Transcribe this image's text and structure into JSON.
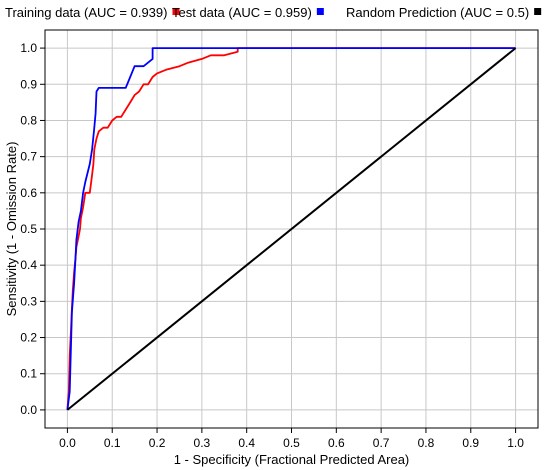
{
  "chart_data": {
    "type": "line",
    "title": "",
    "xlabel": "1 - Specificity  (Fractional Predicted Area)",
    "ylabel": "Sensitivity  (1 - Omission Rate)",
    "xlim": [
      -0.05,
      1.05
    ],
    "ylim": [
      -0.05,
      1.05
    ],
    "xticks": [
      "0.0",
      "0.1",
      "0.2",
      "0.3",
      "0.4",
      "0.5",
      "0.6",
      "0.7",
      "0.8",
      "0.9",
      "1.0"
    ],
    "yticks": [
      "0.0",
      "0.1",
      "0.2",
      "0.3",
      "0.4",
      "0.5",
      "0.6",
      "0.7",
      "0.8",
      "0.9",
      "1.0"
    ],
    "grid": true,
    "legend_position": "top",
    "series": [
      {
        "name": "Training data (AUC = 0.939)",
        "color": "#ff0000",
        "x": [
          0.0,
          0.003,
          0.005,
          0.008,
          0.01,
          0.012,
          0.015,
          0.018,
          0.02,
          0.025,
          0.028,
          0.03,
          0.035,
          0.04,
          0.045,
          0.05,
          0.055,
          0.058,
          0.06,
          0.065,
          0.07,
          0.08,
          0.09,
          0.1,
          0.11,
          0.12,
          0.13,
          0.14,
          0.15,
          0.16,
          0.17,
          0.18,
          0.19,
          0.2,
          0.22,
          0.25,
          0.27,
          0.3,
          0.32,
          0.35,
          0.38,
          0.38,
          1.0
        ],
        "y": [
          0.0,
          0.05,
          0.15,
          0.22,
          0.28,
          0.33,
          0.38,
          0.42,
          0.45,
          0.48,
          0.5,
          0.53,
          0.56,
          0.6,
          0.6,
          0.6,
          0.65,
          0.68,
          0.72,
          0.75,
          0.77,
          0.78,
          0.78,
          0.8,
          0.81,
          0.81,
          0.83,
          0.85,
          0.87,
          0.88,
          0.9,
          0.9,
          0.92,
          0.93,
          0.94,
          0.95,
          0.96,
          0.97,
          0.98,
          0.98,
          0.99,
          1.0,
          1.0
        ]
      },
      {
        "name": "Test data (AUC = 0.959)",
        "color": "#0000ff",
        "x": [
          0.0,
          0.005,
          0.008,
          0.01,
          0.015,
          0.018,
          0.02,
          0.025,
          0.03,
          0.035,
          0.04,
          0.05,
          0.055,
          0.06,
          0.063,
          0.065,
          0.07,
          0.09,
          0.11,
          0.13,
          0.14,
          0.15,
          0.17,
          0.19,
          0.19,
          0.35,
          1.0
        ],
        "y": [
          0.0,
          0.05,
          0.18,
          0.27,
          0.35,
          0.42,
          0.47,
          0.52,
          0.55,
          0.6,
          0.63,
          0.68,
          0.72,
          0.78,
          0.82,
          0.88,
          0.89,
          0.89,
          0.89,
          0.89,
          0.92,
          0.95,
          0.95,
          0.97,
          1.0,
          1.0,
          1.0
        ]
      },
      {
        "name": "Random Prediction (AUC = 0.5)",
        "color": "#000000",
        "x": [
          0.0,
          1.0
        ],
        "y": [
          0.0,
          1.0
        ]
      }
    ]
  }
}
